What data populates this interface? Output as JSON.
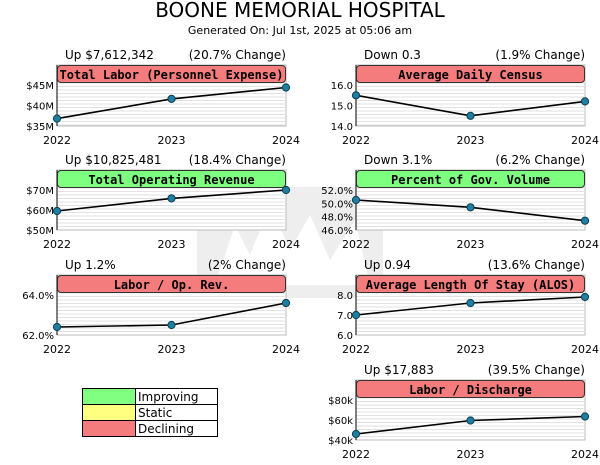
{
  "header": {
    "title": "BOONE MEMORIAL HOSPITAL",
    "subtitle": "Generated On: Jul 1st, 2025 at 05:06 am"
  },
  "legend": {
    "items": [
      {
        "label": "Improving",
        "color": "#80ff80"
      },
      {
        "label": "Static",
        "color": "#ffff80"
      },
      {
        "label": "Declining",
        "color": "#f57c7c"
      }
    ]
  },
  "colors": {
    "improving": "#80ff80",
    "declining": "#f57c7c",
    "marker": "#1f7fa0"
  },
  "chart_data": [
    {
      "type": "line",
      "title": "Total Labor (Personnel Expense)",
      "status": "declining",
      "trend": "Up $7,612,342",
      "change": "(20.7% Change)",
      "x": [
        "2022",
        "2023",
        "2024"
      ],
      "values": [
        36.8,
        41.6,
        44.4
      ],
      "ylim": [
        35,
        45
      ],
      "yticks": [
        "$35M",
        "$40M",
        "$45M"
      ],
      "grid": true
    },
    {
      "type": "line",
      "title": "Average Daily Census",
      "status": "declining",
      "trend": "Down 0.3",
      "change": "(1.9% Change)",
      "x": [
        "2022",
        "2023",
        "2024"
      ],
      "values": [
        15.5,
        14.5,
        15.2
      ],
      "ylim": [
        14,
        16
      ],
      "yticks": [
        "14.0",
        "15.0",
        "16.0"
      ],
      "grid": true
    },
    {
      "type": "line",
      "title": "Total Operating Revenue",
      "status": "improving",
      "trend": "Up $10,825,481",
      "change": "(18.4% Change)",
      "x": [
        "2022",
        "2023",
        "2024"
      ],
      "values": [
        59.5,
        65.8,
        70.0
      ],
      "ylim": [
        50,
        70
      ],
      "yticks": [
        "$50M",
        "$60M",
        "$70M"
      ],
      "grid": true
    },
    {
      "type": "line",
      "title": "Percent of Gov. Volume",
      "status": "improving",
      "trend": "Down 3.1%",
      "change": "(6.2% Change)",
      "x": [
        "2022",
        "2023",
        "2024"
      ],
      "values": [
        50.5,
        49.4,
        47.4
      ],
      "ylim": [
        46,
        52
      ],
      "yticks": [
        "46.0%",
        "48.0%",
        "50.0%",
        "52.0%"
      ],
      "grid": true
    },
    {
      "type": "line",
      "title": "Labor / Op. Rev.",
      "status": "declining",
      "trend": "Up 1.2%",
      "change": "(2% Change)",
      "x": [
        "2022",
        "2023",
        "2024"
      ],
      "values": [
        62.4,
        62.5,
        63.6
      ],
      "ylim": [
        62,
        64
      ],
      "yticks": [
        "62.0%",
        "64.0%"
      ],
      "grid": true
    },
    {
      "type": "line",
      "title": "Average Length Of Stay (ALOS)",
      "status": "declining",
      "trend": "Up 0.94",
      "change": "(13.6% Change)",
      "x": [
        "2022",
        "2023",
        "2024"
      ],
      "values": [
        7.0,
        7.6,
        7.9
      ],
      "ylim": [
        6,
        8
      ],
      "yticks": [
        "6.0",
        "7.0",
        "8.0"
      ],
      "grid": true
    },
    {
      "type": "line",
      "title": "Labor / Discharge",
      "status": "declining",
      "trend": "Up $17,883",
      "change": "(39.5% Change)",
      "x": [
        "2022",
        "2023",
        "2024"
      ],
      "values": [
        46000,
        59500,
        63500
      ],
      "ylim": [
        40000,
        80000
      ],
      "yticks": [
        "$40k",
        "$60k",
        "$80k"
      ],
      "grid": true
    }
  ]
}
